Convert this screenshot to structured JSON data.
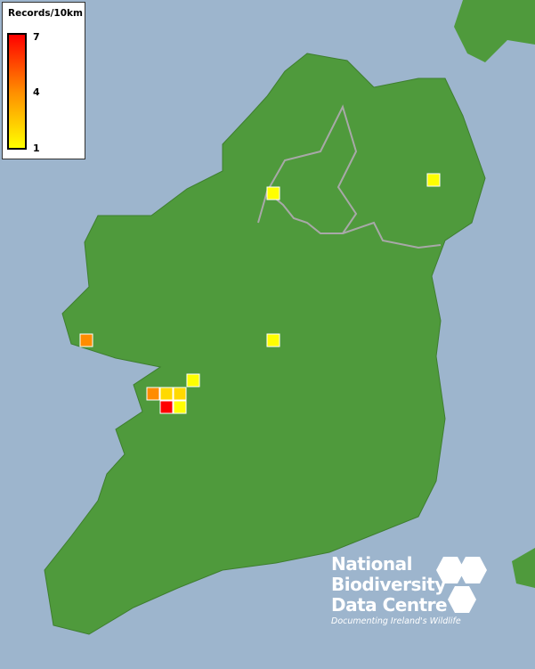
{
  "legend": {
    "title": "Records/10km",
    "max_label": "7",
    "mid_label": "4",
    "min_label": "1",
    "color_low": "#ffff00",
    "color_mid": "#ff8c00",
    "color_high": "#ff0000"
  },
  "colors": {
    "sea": "#9db5cd",
    "land": "#4f9a3c",
    "border": "#a0a0a0"
  },
  "grid_cells": [
    {
      "records": 1
    },
    {
      "records": 1
    },
    {
      "records": 4
    },
    {
      "records": 1
    },
    {
      "records": 1
    },
    {
      "records": 4
    },
    {
      "records": 2
    },
    {
      "records": 2
    },
    {
      "records": 7
    },
    {
      "records": 1
    }
  ],
  "logo": {
    "line1": "National",
    "line2": "Biodiversity",
    "line3": "Data Centre",
    "tagline": "Documenting Ireland's Wildlife"
  }
}
